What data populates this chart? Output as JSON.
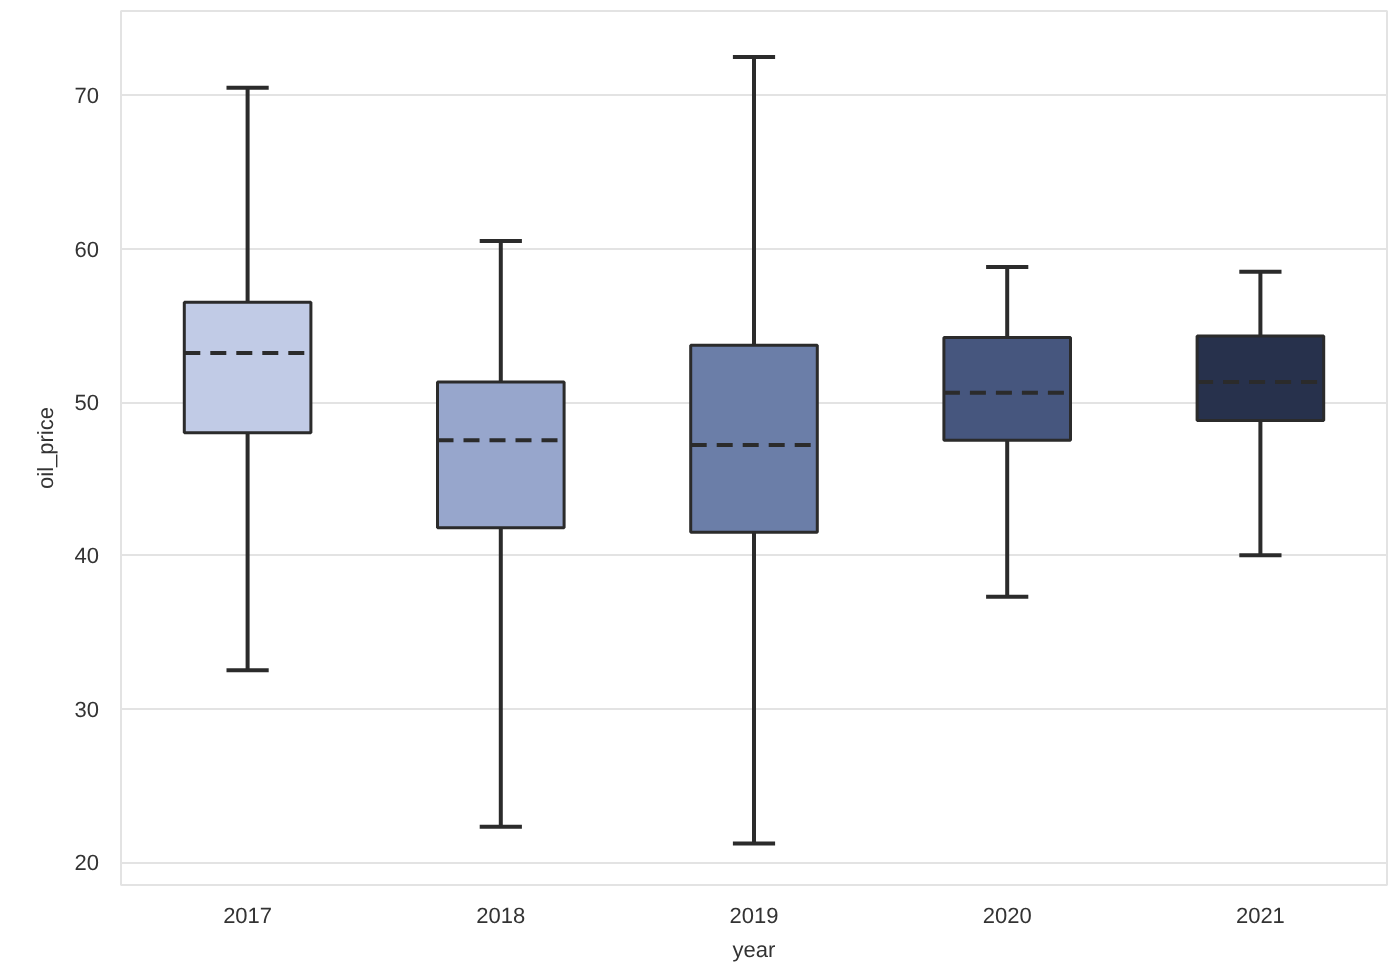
{
  "chart_data": {
    "type": "box",
    "xlabel": "year",
    "ylabel": "oil_price",
    "categories": [
      "2017",
      "2018",
      "2019",
      "2020",
      "2021"
    ],
    "boxes": [
      {
        "low": 32.5,
        "q1": 48,
        "median": 53.2,
        "q3": 56.5,
        "high": 70.5
      },
      {
        "low": 22.3,
        "q1": 41.8,
        "median": 47.5,
        "q3": 51.3,
        "high": 60.5
      },
      {
        "low": 21.2,
        "q1": 41.5,
        "median": 47.2,
        "q3": 53.7,
        "high": 72.5
      },
      {
        "low": 37.3,
        "q1": 47.5,
        "median": 50.6,
        "q3": 54.2,
        "high": 58.8
      },
      {
        "low": 40,
        "q1": 48.8,
        "median": 51.3,
        "q3": 54.3,
        "high": 58.5
      }
    ],
    "colors": [
      "#c1cbe6",
      "#97a6cc",
      "#6b7ea8",
      "#46567e",
      "#27314c"
    ],
    "ylim": [
      18.5,
      75.5
    ],
    "yticks": [
      20,
      30,
      40,
      50,
      60,
      70
    ],
    "grid": "y"
  }
}
